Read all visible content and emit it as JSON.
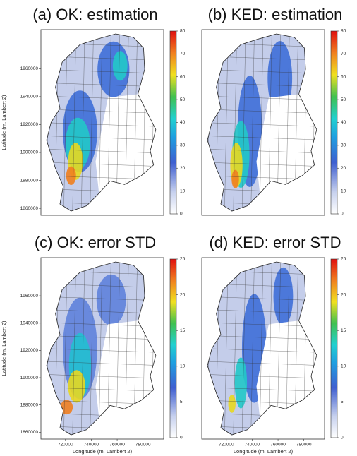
{
  "chart_data": {
    "type": "map-panels",
    "panels": [
      {
        "title": "(a) OK: estimation",
        "ylabel": "Latitude (m, Lambert 2)",
        "xlim": [
          701000,
          796000
        ],
        "ylim": [
          1855000,
          1988000
        ],
        "yticks": [
          1860000,
          1880000,
          1900000,
          1920000,
          1940000,
          1960000
        ],
        "colorbar": {
          "lim": [
            0,
            80
          ],
          "ticks": [
            0,
            10,
            20,
            30,
            40,
            50,
            60,
            70,
            80
          ]
        }
      },
      {
        "title": "(b) KED: estimation",
        "xlim": [
          701000,
          796000
        ],
        "ylim": [
          1855000,
          1988000
        ],
        "colorbar": {
          "lim": [
            0,
            80
          ],
          "ticks": [
            0,
            10,
            20,
            30,
            40,
            50,
            60,
            70,
            80
          ]
        }
      },
      {
        "title": "(c) OK: error STD",
        "ylabel": "Latitude (m, Lambert 2)",
        "xlabel": "Longitude (m, Lambert 2)",
        "xlim": [
          701000,
          796000
        ],
        "ylim": [
          1855000,
          1988000
        ],
        "xticks": [
          720000,
          740000,
          760000,
          780000
        ],
        "yticks": [
          1860000,
          1880000,
          1900000,
          1920000,
          1940000,
          1960000
        ],
        "colorbar": {
          "lim": [
            0,
            25
          ],
          "ticks": [
            0,
            5,
            10,
            15,
            20,
            25
          ]
        }
      },
      {
        "title": "(d) KED: error STD",
        "xlabel": "Longitude (m, Lambert 2)",
        "xlim": [
          701000,
          796000
        ],
        "ylim": [
          1855000,
          1988000
        ],
        "xticks": [
          720000,
          740000,
          760000,
          780000
        ],
        "colorbar": {
          "lim": [
            0,
            25
          ],
          "ticks": [
            0,
            5,
            10,
            15,
            20,
            25
          ]
        }
      }
    ]
  }
}
